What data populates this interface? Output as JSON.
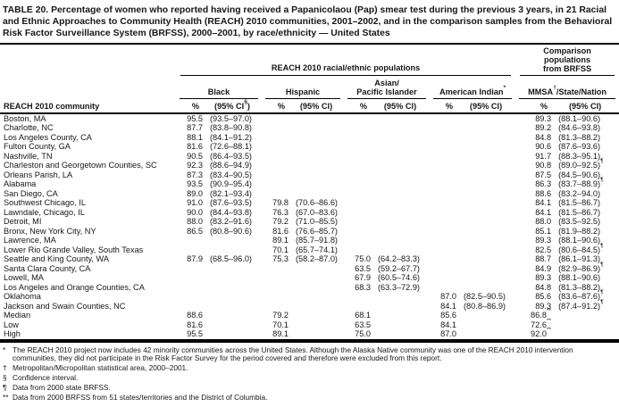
{
  "title": "TABLE 20. Percentage of women who reported having received a Papanicolaou (Pap) smear test during the previous 3 years, in 21 Racial and Ethnic Approaches to Community Health (REACH) 2010 communities, 2001–2002, and in the comparison samples from the Behavioral Risk Factor Surveillance System (BRFSS), 2000–2001, by race/ethnicity — United States",
  "header": {
    "reach_spanner": "REACH 2010 racial/ethnic populations",
    "comparison_spanner": "Comparison populations from BRFSS",
    "row_header": "REACH 2010 community",
    "pct_label": "%",
    "groups": [
      {
        "label": "Black",
        "label2": "",
        "ci_label": "(95% CI§)"
      },
      {
        "label": "Hispanic",
        "label2": "",
        "ci_label": "(95% CI)"
      },
      {
        "label": "Asian/",
        "label2": "Pacific Islander",
        "ci_label": "(95% CI)"
      },
      {
        "label": "American Indian*",
        "label2": "",
        "ci_label": "(95% CI)"
      },
      {
        "label": "MMSA†/State/Nation",
        "label2": "",
        "ci_label": "(95% CI)"
      }
    ]
  },
  "table": {
    "rows": [
      {
        "community": "Boston, MA",
        "cells": [
          "95.5",
          "(93.5–97.0)",
          "",
          "",
          "",
          "",
          "",
          "",
          "89.3",
          "(88.1–90.6)"
        ]
      },
      {
        "community": "Charlotte, NC",
        "cells": [
          "87.7",
          "(83.8–90.8)",
          "",
          "",
          "",
          "",
          "",
          "",
          "89.2",
          "(84.6–93.8)"
        ]
      },
      {
        "community": "Los Angeles County, CA",
        "cells": [
          "88.1",
          "(84.1–91.2)",
          "",
          "",
          "",
          "",
          "",
          "",
          "84.8",
          "(81.3–88.2)"
        ]
      },
      {
        "community": "Fulton County, GA",
        "cells": [
          "81.6",
          "(72.6–88.1)",
          "",
          "",
          "",
          "",
          "",
          "",
          "90.6",
          "(87.6–93.6)"
        ]
      },
      {
        "community": "Nashville, TN",
        "cells": [
          "90.5",
          "(86.4–93.5)",
          "",
          "",
          "",
          "",
          "",
          "",
          "91.7",
          "(88.3–95.1)"
        ]
      },
      {
        "community": "Charleston and Georgetown Counties, SC",
        "cells": [
          "92.3",
          "(88.6–94.9)",
          "",
          "",
          "",
          "",
          "",
          "",
          "90.8",
          "(89.0–92.5)¶"
        ]
      },
      {
        "community": "Orleans Parish, LA",
        "cells": [
          "87.3",
          "(83.4–90.5)",
          "",
          "",
          "",
          "",
          "",
          "",
          "87.5",
          "(84.5–90.6)"
        ]
      },
      {
        "community": "Alabama",
        "cells": [
          "93.5",
          "(90.9–95.4)",
          "",
          "",
          "",
          "",
          "",
          "",
          "86.3",
          "(83.7–88.9)¶"
        ]
      },
      {
        "community": "San Diego, CA",
        "cells": [
          "89.0",
          "(82.1–93.4)",
          "",
          "",
          "",
          "",
          "",
          "",
          "88.6",
          "(83.2–94.0)"
        ]
      },
      {
        "community": "Southwest Chicago, IL",
        "cells": [
          "91.0",
          "(87.6–93.5)",
          "79.8",
          "(70.6–86.6)",
          "",
          "",
          "",
          "",
          "84.1",
          "(81.5–86.7)"
        ]
      },
      {
        "community": "Lawndale, Chicago, IL",
        "cells": [
          "90.0",
          "(84.4–93.8)",
          "76.3",
          "(67.0–83.6)",
          "",
          "",
          "",
          "",
          "84.1",
          "(81.5–86.7)"
        ]
      },
      {
        "community": "Detroit, MI",
        "cells": [
          "88.0",
          "(83.2–91.6)",
          "79.2",
          "(71.0–85.5)",
          "",
          "",
          "",
          "",
          "88.0",
          "(83.5–92.5)"
        ]
      },
      {
        "community": "Bronx, New York City, NY",
        "cells": [
          "86.5",
          "(80.8–90.6)",
          "81.6",
          "(76.6–85.7)",
          "",
          "",
          "",
          "",
          "85.1",
          "(81.9–88.2)"
        ]
      },
      {
        "community": "Lawrence, MA",
        "cells": [
          "",
          "",
          "89.1",
          "(85.7–91.8)",
          "",
          "",
          "",
          "",
          "89.3",
          "(88.1–90.6)"
        ]
      },
      {
        "community": "Lower Rio Grande Valley, South Texas",
        "cells": [
          "",
          "",
          "70.1",
          "(65.7–74.1)",
          "",
          "",
          "",
          "",
          "82.5",
          "(80.6–84.5)¶"
        ]
      },
      {
        "community": "Seattle and King County, WA",
        "cells": [
          "87.9",
          "(68.5–96.0)",
          "75.3",
          "(58.2–87.0)",
          "75.0",
          "(64.2–83.3)",
          "",
          "",
          "88.7",
          "(86.1–91.3)"
        ]
      },
      {
        "community": "Santa Clara County, CA",
        "cells": [
          "",
          "",
          "",
          "",
          "63.5",
          "(59.2–67.7)",
          "",
          "",
          "84.9",
          "(82.9–86.9)¶"
        ]
      },
      {
        "community": "Lowell, MA",
        "cells": [
          "",
          "",
          "",
          "",
          "67.9",
          "(60.5–74.6)",
          "",
          "",
          "89.3",
          "(88.1–90.6)"
        ]
      },
      {
        "community": "Los Angeles and Orange Counties, CA",
        "cells": [
          "",
          "",
          "",
          "",
          "68.3",
          "(63.3–72.9)",
          "",
          "",
          "84.8",
          "(81.3–88.2)"
        ]
      },
      {
        "community": "Oklahoma",
        "cells": [
          "",
          "",
          "",
          "",
          "",
          "",
          "87.0",
          "(82.5–90.5)",
          "85.6",
          "(83.6–87.6)¶"
        ]
      },
      {
        "community": "Jackson and Swain Counties, NC",
        "cells": [
          "",
          "",
          "",
          "",
          "",
          "",
          "84.1",
          "(80.8–86.9)",
          "89.3",
          "(87.4–91.2)¶"
        ]
      },
      {
        "community": "Median",
        "cells": [
          "88.6",
          "",
          "79.2",
          "",
          "68.1",
          "",
          "85.6",
          "",
          "86.8**",
          ""
        ]
      },
      {
        "community": "Low",
        "cells": [
          "81.6",
          "",
          "70.1",
          "",
          "63.5",
          "",
          "84.1",
          "",
          "72.6**",
          ""
        ]
      },
      {
        "community": "High",
        "cells": [
          "95.5",
          "",
          "89.1",
          "",
          "75.0",
          "",
          "87.0",
          "",
          "92.0**",
          ""
        ]
      }
    ]
  },
  "footnotes": [
    {
      "marker": "*",
      "text": "The REACH 2010 project now includes 42 minority communities across the United States. Although the Alaska Native community was one of the REACH 2010 intervention communities, they did not participate in the Risk Factor Survey for the period covered and therefore were excluded from this report."
    },
    {
      "marker": "†",
      "text": "Metropolitan/Micropolitan statistical area, 2000–2001."
    },
    {
      "marker": "§",
      "text": "Confidence interval."
    },
    {
      "marker": "¶",
      "text": "Data from 2000 state BRFSS."
    },
    {
      "marker": "**",
      "text": "Data from 2000 BRFSS from 51 states/territories and the District of Columbia."
    }
  ]
}
